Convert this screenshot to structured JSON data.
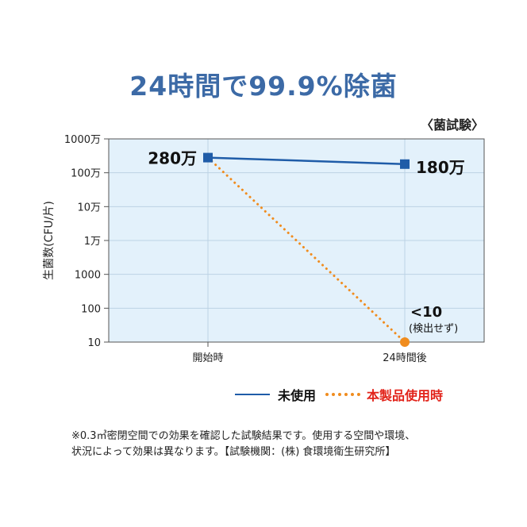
{
  "title": "24時間で99.9%除菌",
  "subtitle": "〈菌試験〉",
  "note": [
    "※0.3㎥密閉空間での効果を確認した試験結果です。使用する空間や環境、",
    "状況によって効果は異なります。【試験機関：(株) 食環境衛生研究所】"
  ],
  "chart_data": {
    "type": "line",
    "ylabel": "生菌数(CFU/片)",
    "xlabel": "",
    "y_scale": "log",
    "ylim": [
      10,
      10000000
    ],
    "y_ticks": [
      10,
      100,
      1000,
      10000,
      100000,
      1000000,
      10000000
    ],
    "y_tick_labels": [
      "10",
      "100",
      "1000",
      "1万",
      "10万",
      "100万",
      "1000万"
    ],
    "categories": [
      "開始時",
      "24時間後"
    ],
    "grid": true,
    "legend_position": "bottom",
    "series": [
      {
        "name": "未使用",
        "values": [
          2800000,
          1800000
        ],
        "style": "solid",
        "color": "#1f5ca8",
        "marker": "square"
      },
      {
        "name": "本製品使用時",
        "values": [
          2800000,
          10
        ],
        "style": "dotted",
        "color": "#f08c1e",
        "marker": "circle"
      }
    ],
    "annotations": [
      {
        "text": "280万"
      },
      {
        "text": "180万"
      },
      {
        "text": "<10"
      },
      {
        "text": "(検出せず)"
      }
    ]
  }
}
